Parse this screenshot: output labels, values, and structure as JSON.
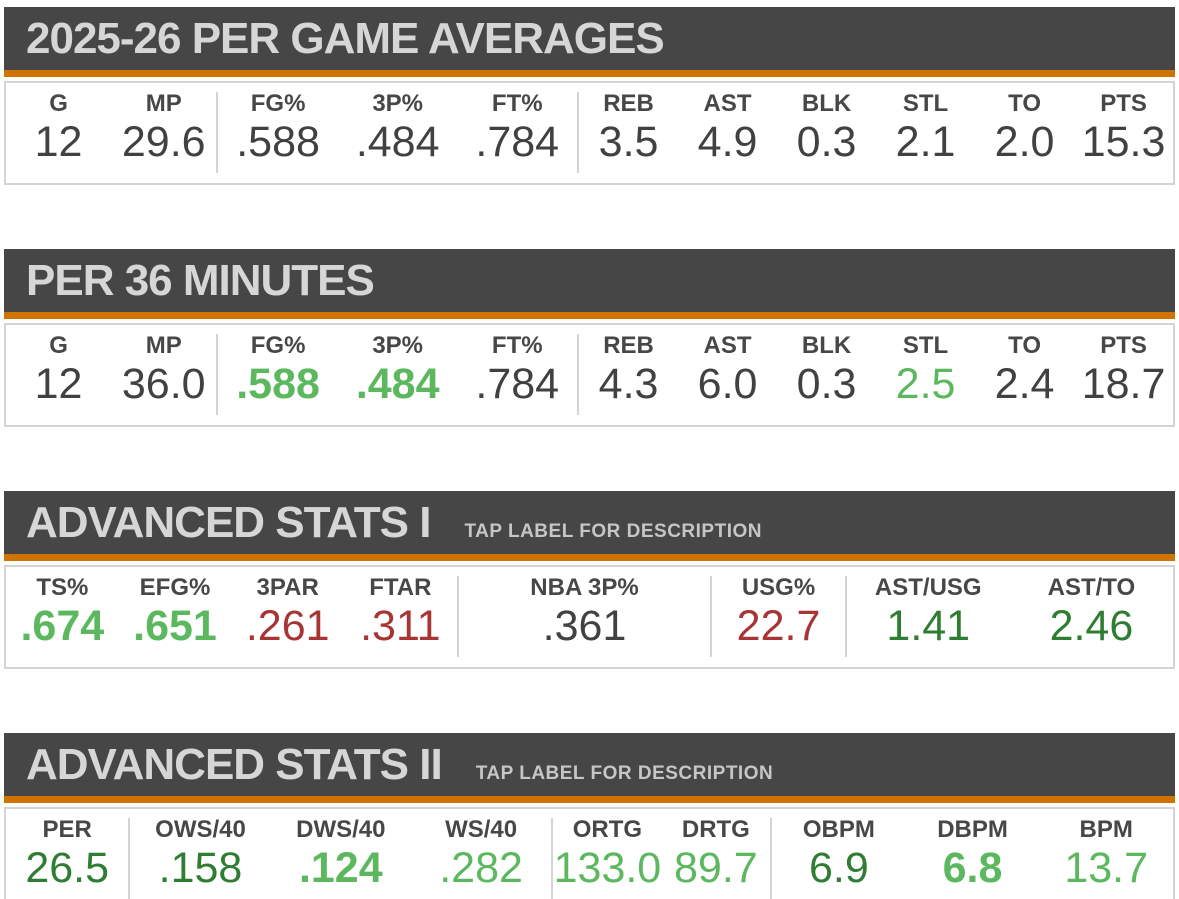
{
  "theme": {
    "page_bg": "#ffffff",
    "header_bg": "#464646",
    "accent_orange": "#d07300",
    "title_color": "#d6d6d6",
    "hint_color": "#c6c6c6",
    "label_color": "#474747",
    "value_neutral": "#414141",
    "value_good": "#5cb85f",
    "value_good_dark": "#2f7d33",
    "value_bad": "#a83434",
    "border_color": "#d4d4d4"
  },
  "sections": [
    {
      "id": "per-game-averages",
      "title": "2025-26 PER GAME AVERAGES",
      "subtitle": "",
      "labels_tappable": false,
      "groups": [
        {
          "weight": 211,
          "cols": [
            {
              "label": "G",
              "value": "12",
              "tone": "neutral"
            },
            {
              "label": "MP",
              "value": "29.6",
              "tone": "neutral"
            }
          ]
        },
        {
          "weight": 360,
          "cols": [
            {
              "label": "FG%",
              "value": ".588",
              "tone": "neutral"
            },
            {
              "label": "3P%",
              "value": ".484",
              "tone": "neutral"
            },
            {
              "label": "FT%",
              "value": ".784",
              "tone": "neutral"
            }
          ]
        },
        {
          "weight": 596,
          "cols": [
            {
              "label": "REB",
              "value": "3.5",
              "tone": "neutral"
            },
            {
              "label": "AST",
              "value": "4.9",
              "tone": "neutral"
            },
            {
              "label": "BLK",
              "value": "0.3",
              "tone": "neutral"
            },
            {
              "label": "STL",
              "value": "2.1",
              "tone": "neutral"
            },
            {
              "label": "TO",
              "value": "2.0",
              "tone": "neutral"
            },
            {
              "label": "PTS",
              "value": "15.3",
              "tone": "neutral"
            }
          ]
        }
      ]
    },
    {
      "id": "per-36-minutes",
      "title": "PER 36 MINUTES",
      "subtitle": "",
      "labels_tappable": false,
      "groups": [
        {
          "weight": 211,
          "cols": [
            {
              "label": "G",
              "value": "12",
              "tone": "neutral"
            },
            {
              "label": "MP",
              "value": "36.0",
              "tone": "neutral"
            }
          ]
        },
        {
          "weight": 360,
          "cols": [
            {
              "label": "FG%",
              "value": ".588",
              "tone": "good-bold"
            },
            {
              "label": "3P%",
              "value": ".484",
              "tone": "good-bold"
            },
            {
              "label": "FT%",
              "value": ".784",
              "tone": "neutral"
            }
          ]
        },
        {
          "weight": 596,
          "cols": [
            {
              "label": "REB",
              "value": "4.3",
              "tone": "neutral"
            },
            {
              "label": "AST",
              "value": "6.0",
              "tone": "neutral"
            },
            {
              "label": "BLK",
              "value": "0.3",
              "tone": "neutral"
            },
            {
              "label": "STL",
              "value": "2.5",
              "tone": "good"
            },
            {
              "label": "TO",
              "value": "2.4",
              "tone": "neutral"
            },
            {
              "label": "PTS",
              "value": "18.7",
              "tone": "neutral"
            }
          ]
        }
      ]
    },
    {
      "id": "advanced-stats-1",
      "title": "ADVANCED STATS I",
      "subtitle": "TAP LABEL FOR DESCRIPTION",
      "labels_tappable": true,
      "groups": [
        {
          "weight": 453,
          "cols": [
            {
              "label": "TS%",
              "value": ".674",
              "tone": "good-bold"
            },
            {
              "label": "EFG%",
              "value": ".651",
              "tone": "good-bold"
            },
            {
              "label": "3PAR",
              "value": ".261",
              "tone": "bad"
            },
            {
              "label": "FTAR",
              "value": ".311",
              "tone": "bad"
            }
          ]
        },
        {
          "weight": 253,
          "cols": [
            {
              "label": "NBA 3P%",
              "value": ".361",
              "tone": "neutral"
            }
          ]
        },
        {
          "weight": 133,
          "cols": [
            {
              "label": "USG%",
              "value": "22.7",
              "tone": "bad"
            }
          ]
        },
        {
          "weight": 328,
          "cols": [
            {
              "label": "AST/USG",
              "value": "1.41",
              "tone": "good-dark"
            },
            {
              "label": "AST/TO",
              "value": "2.46",
              "tone": "good-dark"
            }
          ]
        }
      ]
    },
    {
      "id": "advanced-stats-2",
      "title": "ADVANCED STATS II",
      "subtitle": "TAP LABEL FOR DESCRIPTION",
      "labels_tappable": true,
      "groups": [
        {
          "weight": 123,
          "cols": [
            {
              "label": "PER",
              "value": "26.5",
              "tone": "good-dark"
            }
          ]
        },
        {
          "weight": 423,
          "cols": [
            {
              "label": "OWS/40",
              "value": ".158",
              "tone": "good-dark"
            },
            {
              "label": "DWS/40",
              "value": ".124",
              "tone": "good-bold"
            },
            {
              "label": "WS/40",
              "value": ".282",
              "tone": "good"
            }
          ]
        },
        {
          "weight": 218,
          "cols": [
            {
              "label": "ORTG",
              "value": "133.0",
              "tone": "good"
            },
            {
              "label": "DRTG",
              "value": "89.7",
              "tone": "good"
            }
          ]
        },
        {
          "weight": 403,
          "cols": [
            {
              "label": "OBPM",
              "value": "6.9",
              "tone": "good-dark"
            },
            {
              "label": "DBPM",
              "value": "6.8",
              "tone": "good-bold"
            },
            {
              "label": "BPM",
              "value": "13.7",
              "tone": "good"
            }
          ]
        }
      ]
    }
  ]
}
